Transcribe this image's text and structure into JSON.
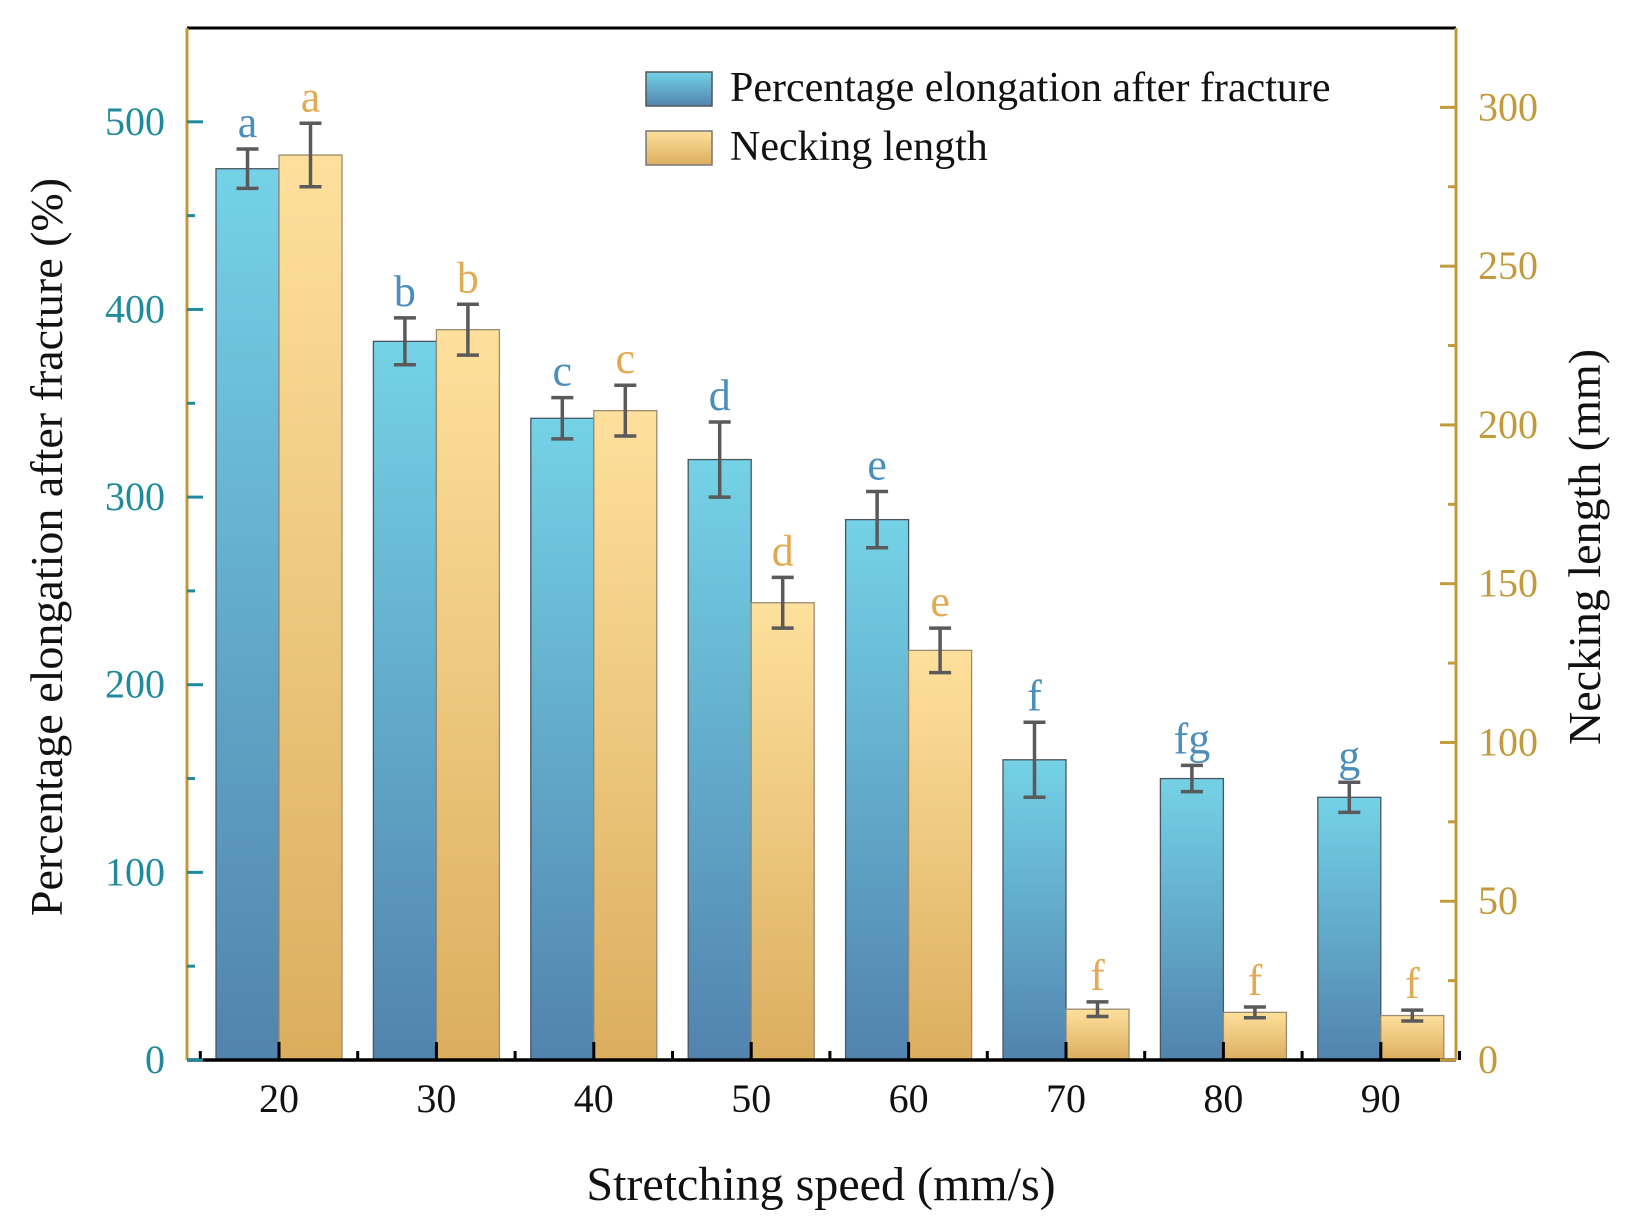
{
  "chart_data": {
    "type": "bar",
    "xlabel": "Stretching speed (mm/s)",
    "ylabel_left": "Percentage elongation after fracture (%)",
    "ylabel_right": "Necking length (mm)",
    "categories": [
      "20",
      "30",
      "40",
      "50",
      "60",
      "70",
      "80",
      "90"
    ],
    "ylim_left": [
      0,
      550
    ],
    "yticks_left": [
      0,
      100,
      200,
      300,
      400,
      500
    ],
    "ylim_right": [
      0,
      325
    ],
    "yticks_right": [
      0,
      50,
      100,
      150,
      200,
      250,
      300
    ],
    "legend_position": "top-right",
    "series": [
      {
        "name": "Percentage elongation after fracture",
        "axis": "left",
        "values": [
          475,
          383,
          342,
          320,
          288,
          160,
          150,
          140
        ],
        "errors": [
          10.5,
          12.5,
          11,
          20,
          15,
          20,
          7,
          8
        ],
        "letters": [
          "a",
          "b",
          "c",
          "d",
          "e",
          "f",
          "fg",
          "g"
        ],
        "color_top": "#74d2e6",
        "color_bottom": "#5183ae",
        "letter_color": "#4b8dbb"
      },
      {
        "name": "Necking length",
        "axis": "right",
        "values": [
          285,
          230,
          204.5,
          144,
          129,
          16,
          15,
          14
        ],
        "errors": [
          10,
          8,
          8,
          8,
          7,
          2.3,
          1.7,
          1.7
        ],
        "letters": [
          "a",
          "b",
          "c",
          "d",
          "e",
          "f",
          "f",
          "f"
        ],
        "color_top": "#fee09c",
        "color_bottom": "#dbae5e",
        "letter_color": "#e2aa52"
      }
    ],
    "colors": {
      "left_axis": "#1f8a9c",
      "right_axis": "#c29a3c"
    }
  }
}
